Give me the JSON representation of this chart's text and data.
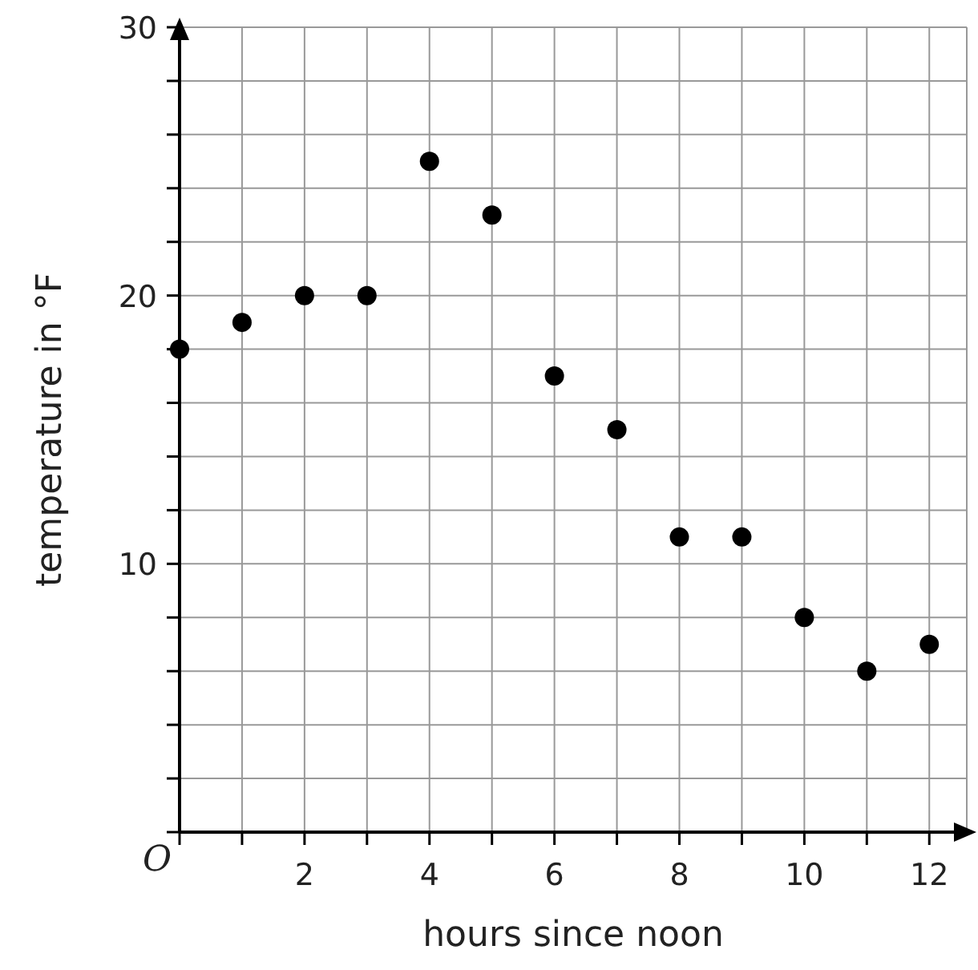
{
  "chart_data": {
    "type": "scatter",
    "xlabel": "hours since noon",
    "ylabel": "temperature in °F",
    "x": [
      0,
      1,
      2,
      3,
      4,
      5,
      6,
      7,
      8,
      9,
      10,
      11,
      12
    ],
    "values": [
      18,
      19,
      20,
      20,
      25,
      23,
      17,
      15,
      11,
      11,
      8,
      6,
      7
    ],
    "color": "#000000",
    "marker": "circle",
    "grid": true,
    "xlim": [
      0,
      12.6
    ],
    "ylim": [
      0,
      30
    ],
    "xticks": [
      {
        "value": 0,
        "label": null
      },
      {
        "value": 1,
        "label": null
      },
      2,
      {
        "value": 3,
        "label": null
      },
      4,
      {
        "value": 5,
        "label": null
      },
      6,
      {
        "value": 7,
        "label": null
      },
      8,
      {
        "value": 9,
        "label": null
      },
      10,
      {
        "value": 11,
        "label": null
      },
      12
    ],
    "yticks": [
      {
        "value": 0,
        "label": null
      },
      {
        "value": 2,
        "label": null
      },
      {
        "value": 4,
        "label": null
      },
      {
        "value": 6,
        "label": null
      },
      {
        "value": 8,
        "label": null
      },
      10,
      {
        "value": 12,
        "label": null
      },
      {
        "value": 14,
        "label": null
      },
      {
        "value": 16,
        "label": null
      },
      {
        "value": 18,
        "label": null
      },
      20,
      {
        "value": 22,
        "label": null
      },
      {
        "value": 24,
        "label": null
      },
      {
        "value": 26,
        "label": null
      },
      {
        "value": 28,
        "label": null
      },
      30
    ],
    "annotations": [
      "O"
    ]
  }
}
